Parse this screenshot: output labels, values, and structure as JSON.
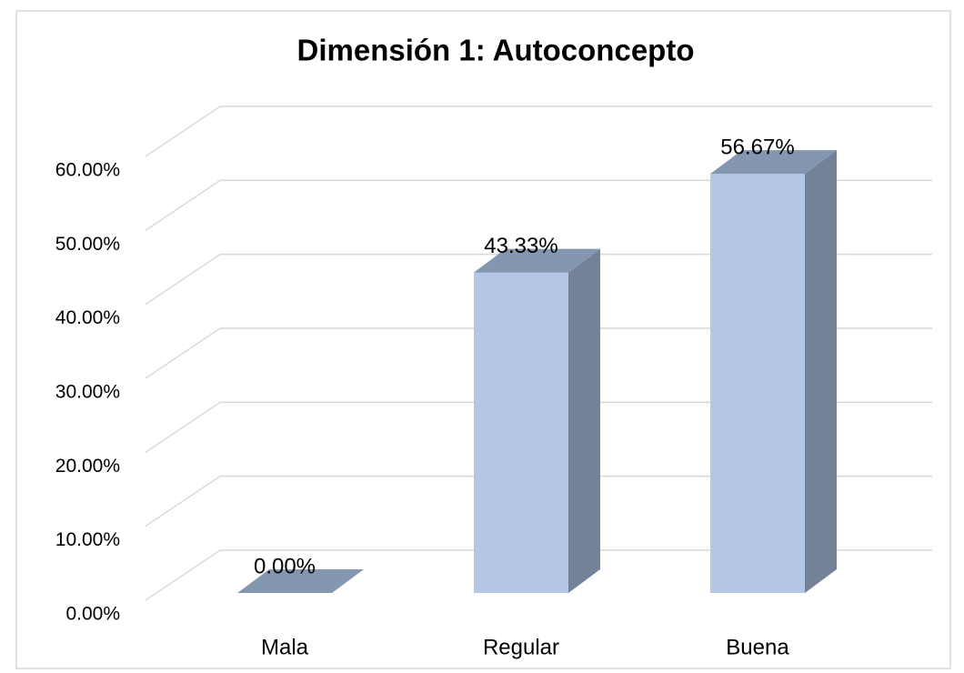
{
  "chart_data": {
    "type": "bar3d",
    "title": "Dimensión 1: Autoconcepto",
    "categories": [
      "Mala",
      "Regular",
      "Buena"
    ],
    "values": [
      0,
      43.33,
      56.67
    ],
    "value_labels": [
      "0.00%",
      "43.33%",
      "56.67%"
    ],
    "color": "#b4c7e7",
    "ylim": [
      0,
      60
    ],
    "yticks": [
      {
        "value": 0,
        "label": "0.00%"
      },
      {
        "value": 10,
        "label": "10.00%"
      },
      {
        "value": 20,
        "label": "20.00%"
      },
      {
        "value": 30,
        "label": "30.00%"
      },
      {
        "value": 40,
        "label": "40.00%"
      },
      {
        "value": 50,
        "label": "50.00%"
      },
      {
        "value": 60,
        "label": "60.00%"
      }
    ],
    "grid": true
  }
}
